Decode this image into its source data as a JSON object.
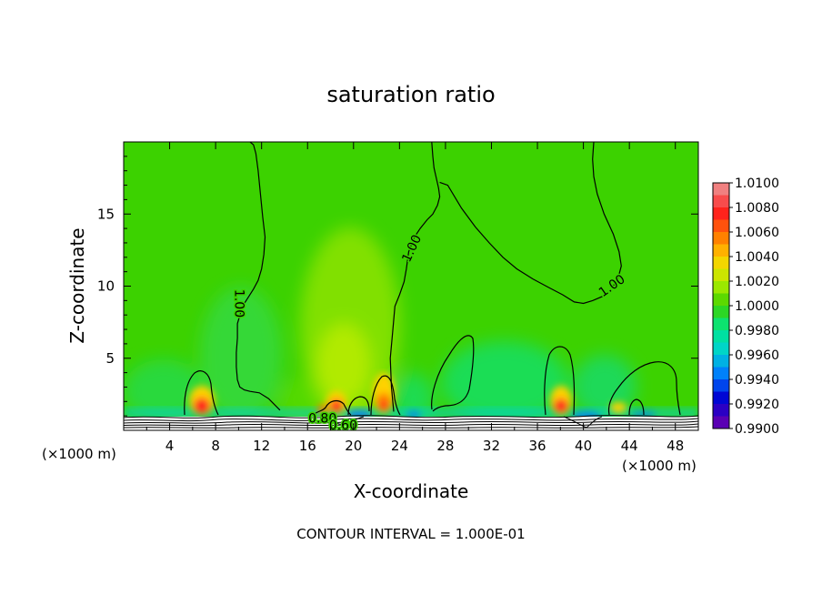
{
  "chart_data": {
    "type": "heatmap",
    "title": "saturation ratio",
    "xlabel": "X-coordinate",
    "ylabel": "Z-coordinate",
    "x_unit_left": "(×1000 m)",
    "x_unit_right": "(×1000 m)",
    "footer": "CONTOUR INTERVAL = 1.000E-01",
    "xlim": [
      0,
      50
    ],
    "ylim": [
      0,
      20
    ],
    "x_ticks": [
      4,
      8,
      12,
      16,
      20,
      24,
      28,
      32,
      36,
      40,
      44,
      48
    ],
    "x_tick_labels": [
      "4",
      "8",
      "12",
      "16",
      "20",
      "24",
      "28",
      "32",
      "36",
      "40",
      "44",
      "48"
    ],
    "y_ticks": [
      5,
      10,
      15
    ],
    "y_tick_labels": [
      "5",
      "10",
      "15"
    ],
    "colorbar": {
      "min": 0.99,
      "max": 1.01,
      "labels": [
        "1.0100",
        "1.0080",
        "1.0060",
        "1.0040",
        "1.0020",
        "1.0000",
        "0.9980",
        "0.9960",
        "0.9940",
        "0.9920",
        "0.9900"
      ],
      "colors": [
        "#f08080",
        "#ff1e1e",
        "#ff7800",
        "#ffd200",
        "#b4ee00",
        "#3cd200",
        "#00e68c",
        "#00d2d2",
        "#0078ff",
        "#0000d2",
        "#5a00b4"
      ]
    },
    "contour_labels": [
      {
        "text": "1.00",
        "x": 10.0,
        "y": 8.8
      },
      {
        "text": "1.00",
        "x": 25.1,
        "y": 12.6
      },
      {
        "text": "1.00",
        "x": 42.5,
        "y": 10.0
      },
      {
        "text": "0.80",
        "x": 17.3,
        "y": 0.8
      },
      {
        "text": "0.60",
        "x": 19.1,
        "y": 0.3
      }
    ],
    "contour_1_00": [
      {
        "x": [
          11.0,
          11.3,
          11.5,
          11.7,
          11.9,
          12.1,
          12.3,
          12.2,
          12.0,
          11.7,
          11.3,
          10.9,
          10.5,
          10.2,
          9.9,
          9.9,
          9.8,
          9.8,
          9.9,
          10.1,
          10.5,
          11.0,
          11.8,
          12.6,
          13.6
        ],
        "y": [
          20.0,
          19.8,
          19.2,
          18.0,
          16.4,
          14.8,
          13.4,
          12.2,
          11.2,
          10.4,
          9.8,
          9.3,
          8.8,
          8.2,
          7.4,
          6.4,
          5.4,
          4.4,
          3.5,
          3.0,
          2.8,
          2.7,
          2.6,
          2.2,
          1.4
        ]
      },
      {
        "x": [
          26.8,
          26.9,
          27.0,
          27.2,
          27.4,
          27.5,
          27.3,
          26.9,
          26.4,
          25.8,
          25.3,
          24.8,
          24.6,
          24.4,
          24.0,
          23.6,
          23.4,
          23.2,
          23.3,
          23.5
        ],
        "y": [
          20.0,
          19.0,
          18.2,
          17.5,
          16.8,
          16.2,
          15.6,
          15.0,
          14.6,
          14.0,
          13.4,
          12.4,
          11.2,
          10.3,
          9.4,
          8.6,
          6.8,
          5.0,
          3.0,
          1.3
        ]
      },
      {
        "x": [
          27.5,
          28.2,
          29.4,
          30.6,
          31.8,
          33.0,
          34.2,
          35.6,
          37.0,
          38.2,
          39.2,
          40.0,
          40.8,
          41.7,
          42.5,
          43.0,
          43.3,
          43.1,
          42.6,
          41.8,
          41.2,
          40.9,
          40.8,
          40.9
        ],
        "y": [
          17.2,
          17.0,
          15.4,
          14.1,
          13.0,
          12.0,
          11.2,
          10.5,
          9.9,
          9.4,
          8.9,
          8.8,
          9.0,
          9.3,
          9.9,
          10.5,
          11.4,
          12.4,
          13.6,
          15.0,
          16.4,
          17.6,
          18.8,
          20.0
        ]
      }
    ]
  }
}
